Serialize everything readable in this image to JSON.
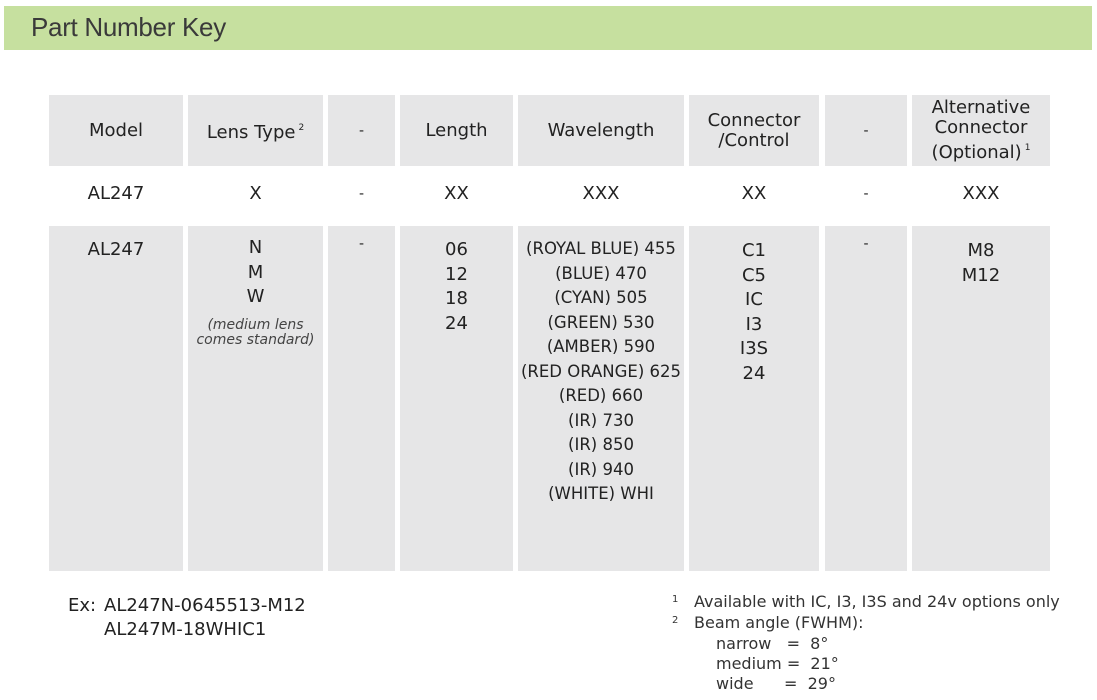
{
  "title": "Part Number Key",
  "headers": [
    "Model",
    "Lens Type",
    "-",
    "Length",
    "Wavelength",
    "Connector /Control",
    "-",
    "Alternative Connector (Optional)"
  ],
  "header_lines": {
    "connector": [
      "Connector",
      "/Control"
    ],
    "alt": [
      "Alternative",
      "Connector",
      "(Optional)"
    ]
  },
  "header_sups": {
    "lens": "2",
    "alt": "1"
  },
  "pattern_row": [
    "AL247",
    "X",
    "-",
    "XX",
    "XXX",
    "XX",
    "-",
    "XXX"
  ],
  "options_row": {
    "model": "AL247",
    "lens": [
      "N",
      "M",
      "W"
    ],
    "lens_note": [
      "(medium lens",
      "comes standard)"
    ],
    "dash1": "-",
    "length": [
      "06",
      "12",
      "18",
      "24"
    ],
    "wavelength": [
      "(ROYAL BLUE) 455",
      "(BLUE) 470",
      "(CYAN) 505",
      "(GREEN) 530",
      "(AMBER) 590",
      "(RED ORANGE) 625",
      "(RED) 660",
      "(IR) 730",
      "(IR) 850",
      "(IR) 940",
      "(WHITE) WHI"
    ],
    "connector": [
      "C1",
      "C5",
      "IC",
      "I3",
      "I3S",
      "24"
    ],
    "dash2": "-",
    "alt": [
      "M8",
      "M12"
    ]
  },
  "example": {
    "label": "Ex:",
    "values": [
      "AL247N-0645513-M12",
      "AL247M-18WHIC1"
    ]
  },
  "footnotes": [
    {
      "num": "1",
      "text": "Available with IC, I3, I3S and 24v options only"
    },
    {
      "num": "2",
      "text": "Beam angle (FWHM):"
    }
  ],
  "beam_angles": [
    "narrow   =  8°",
    "medium =  21°",
    "wide      =  29°"
  ],
  "colors": {
    "banner": "#c6e09f",
    "cell": "#e6e6e7"
  }
}
